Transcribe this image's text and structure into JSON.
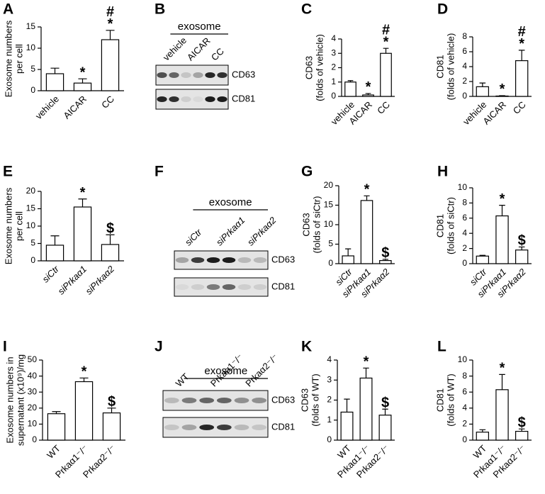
{
  "chart_data": [
    {
      "type": "bar",
      "panel": "A",
      "ylabel": [
        "Exosome numbers",
        "per cell"
      ],
      "categories": [
        "vehicle",
        "AICAR",
        "CC"
      ],
      "values": [
        4.0,
        1.8,
        12.0
      ],
      "errors": [
        1.3,
        1.0,
        2.2
      ],
      "markers": [
        null,
        [
          "*"
        ],
        [
          "#",
          "*"
        ]
      ],
      "ylim": [
        0,
        15
      ],
      "yticks": [
        0,
        5,
        10,
        15
      ],
      "color": "#ffffff"
    },
    {
      "type": "bar",
      "panel": "C",
      "ylabel": [
        "CD63",
        "(folds of vehicle)"
      ],
      "categories": [
        "vehicle",
        "AICAR",
        "CC"
      ],
      "values": [
        1.0,
        0.1,
        3.0
      ],
      "errors": [
        0.1,
        0.1,
        0.35
      ],
      "markers": [
        null,
        [
          "*"
        ],
        [
          "#",
          "*"
        ]
      ],
      "ylim": [
        0,
        4
      ],
      "yticks": [
        0,
        1,
        2,
        3,
        4
      ],
      "color": "#ffffff"
    },
    {
      "type": "bar",
      "panel": "D",
      "ylabel": [
        "CD81",
        "(folds of vehicle)"
      ],
      "categories": [
        "vehicle",
        "AICAR",
        "CC"
      ],
      "values": [
        1.3,
        0.05,
        4.8
      ],
      "errors": [
        0.5,
        0.05,
        1.4
      ],
      "markers": [
        null,
        [
          "*"
        ],
        [
          "#",
          "*"
        ]
      ],
      "ylim": [
        0,
        8
      ],
      "yticks": [
        0,
        2,
        4,
        6,
        8
      ],
      "color": "#ffffff"
    },
    {
      "type": "bar",
      "panel": "E",
      "ylabel": [
        "Exosome numbers",
        "per cell"
      ],
      "categories": [
        "siCtr",
        "siPrkaα1",
        "siPrkaα2"
      ],
      "values": [
        4.5,
        15.5,
        4.7
      ],
      "errors": [
        2.7,
        2.3,
        2.8
      ],
      "markers": [
        null,
        [
          "*"
        ],
        [
          "$"
        ]
      ],
      "ylim": [
        0,
        20
      ],
      "yticks": [
        0,
        5,
        10,
        15,
        20
      ],
      "color": "#ffffff"
    },
    {
      "type": "bar",
      "panel": "G",
      "ylabel": [
        "CD63",
        "(folds of siCtr)"
      ],
      "categories": [
        "siCtr",
        "siPrkaα1",
        "siPrkaα2"
      ],
      "values": [
        2.0,
        16.2,
        0.8
      ],
      "errors": [
        1.8,
        1.2,
        0.3
      ],
      "markers": [
        null,
        [
          "*"
        ],
        [
          "$"
        ]
      ],
      "ylim": [
        0,
        20
      ],
      "yticks": [
        0,
        5,
        10,
        15,
        20
      ],
      "color": "#ffffff"
    },
    {
      "type": "bar",
      "panel": "H",
      "ylabel": [
        "CD81",
        "(folds of siCtr)"
      ],
      "categories": [
        "siCtr",
        "siPrkaα1",
        "siPrkaα2"
      ],
      "values": [
        1.0,
        6.3,
        1.8
      ],
      "errors": [
        0.1,
        1.4,
        0.4
      ],
      "markers": [
        null,
        [
          "*"
        ],
        [
          "$"
        ]
      ],
      "ylim": [
        0,
        10
      ],
      "yticks": [
        0,
        2,
        4,
        6,
        8,
        10
      ],
      "color": "#ffffff"
    },
    {
      "type": "bar",
      "panel": "I",
      "ylabel": [
        "Exosome numbers in",
        "supernatant (x10⁹)/mg"
      ],
      "categories": [
        "WT",
        "Prkaα1⁻/⁻",
        "Prkaα2⁻/⁻"
      ],
      "values": [
        16.5,
        36.5,
        17.0
      ],
      "errors": [
        1.3,
        2.3,
        3.0
      ],
      "markers": [
        null,
        [
          "*"
        ],
        [
          "$"
        ]
      ],
      "ylim": [
        0,
        50
      ],
      "yticks": [
        0,
        10,
        20,
        30,
        40,
        50
      ],
      "color": "#ffffff"
    },
    {
      "type": "bar",
      "panel": "K",
      "ylabel": [
        "CD63",
        "(folds of WT)"
      ],
      "categories": [
        "WT",
        "Prkaα1⁻/⁻",
        "Prkaα2⁻/⁻"
      ],
      "values": [
        1.4,
        3.1,
        1.25
      ],
      "errors": [
        0.65,
        0.5,
        0.3
      ],
      "markers": [
        null,
        [
          "*"
        ],
        [
          "$"
        ]
      ],
      "ylim": [
        0,
        4
      ],
      "yticks": [
        0,
        1,
        2,
        3,
        4
      ],
      "color": "#ffffff"
    },
    {
      "type": "bar",
      "panel": "L",
      "ylabel": [
        "CD81",
        "(folds of WT)"
      ],
      "categories": [
        "WT",
        "Prkaα1⁻/⁻",
        "Prkaα2⁻/⁻"
      ],
      "values": [
        1.0,
        6.3,
        1.1
      ],
      "errors": [
        0.3,
        1.9,
        0.3
      ],
      "markers": [
        null,
        [
          "*"
        ],
        [
          "$"
        ]
      ],
      "ylim": [
        0,
        10
      ],
      "yticks": [
        0,
        2,
        4,
        6,
        8,
        10
      ],
      "color": "#ffffff"
    }
  ],
  "blots": [
    {
      "panel": "B",
      "header": "exosome",
      "lanes": [
        "vehicle",
        "AICAR",
        "CC"
      ],
      "bands": [
        "CD63",
        "CD81"
      ]
    },
    {
      "panel": "F",
      "header": "exosome",
      "lanes": [
        "siCtr",
        "siPrkaα1",
        "siPrkaα2"
      ],
      "bands": [
        "CD63",
        "CD81"
      ]
    },
    {
      "panel": "J",
      "header": "exosome",
      "lanes": [
        "WT",
        "Prkaα1⁻/⁻",
        "Prkaα2⁻/⁻"
      ],
      "bands": [
        "CD63",
        "CD81"
      ]
    }
  ]
}
